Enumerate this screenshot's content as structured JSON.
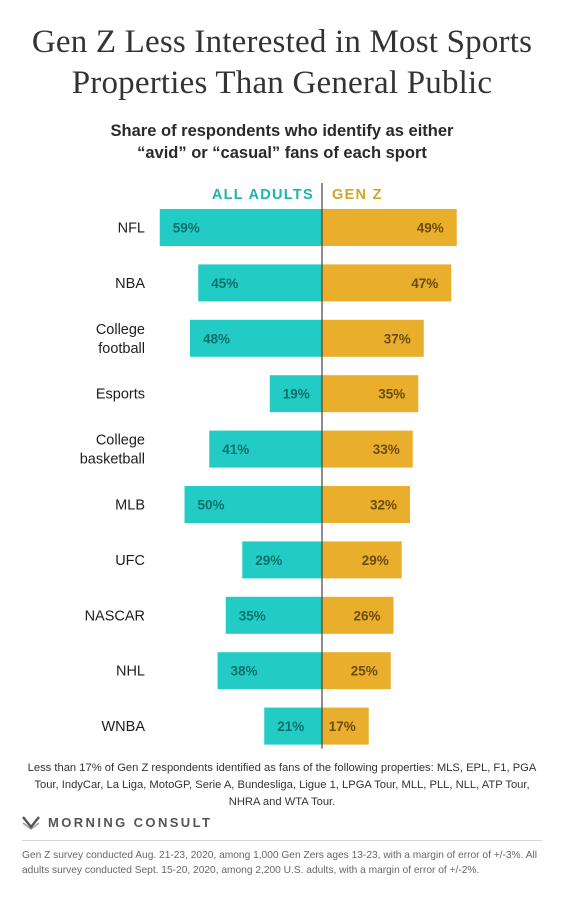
{
  "title": "Gen Z Less Interested in Most Sports Properties Than General Public",
  "subtitle_line1": "Share of respondents who identify as either",
  "subtitle_line2": "“avid” or “casual” fans of each sport",
  "chart_data": {
    "type": "bar",
    "categories": [
      [
        "NFL"
      ],
      [
        "NBA"
      ],
      [
        "College",
        "football"
      ],
      [
        "Esports"
      ],
      [
        "College",
        "basketball"
      ],
      [
        "MLB"
      ],
      [
        "UFC"
      ],
      [
        "NASCAR"
      ],
      [
        "NHL"
      ],
      [
        "WNBA"
      ]
    ],
    "series": [
      {
        "name": "ALL ADULTS",
        "values": [
          59,
          45,
          48,
          19,
          41,
          50,
          29,
          35,
          38,
          21
        ],
        "color": "#22ccc5"
      },
      {
        "name": "GEN Z",
        "values": [
          49,
          47,
          37,
          35,
          33,
          32,
          29,
          26,
          25,
          17
        ],
        "color": "#e9ae2c"
      }
    ],
    "unit": "%",
    "orientation": "diverging-horizontal"
  },
  "footnote": "Less than 17% of Gen Z respondents identified as fans of the following properties: MLS, EPL, F1, PGA Tour, IndyCar, La Liga, MotoGP, Serie A, Bundesliga, Ligue 1,  LPGA Tour, MLL, PLL, NLL, ATP Tour, NHRA and WTA Tour.",
  "brand": "MORNING CONSULT",
  "source_note": "Gen Z survey conducted Aug. 21-23, 2020, among 1,000 Gen Zers ages 13-23, with a margin of error of +/-3%. All adults survey conducted Sept. 15-20, 2020, among 2,200 U.S. adults, with a margin of error of +/-2%.",
  "colors": {
    "label_text": "#0f6f6c",
    "genz_label_text": "#6b4d0a"
  }
}
